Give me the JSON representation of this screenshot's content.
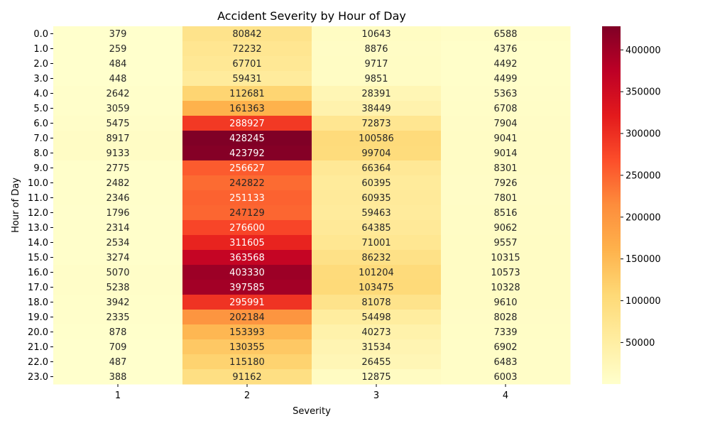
{
  "chart_data": {
    "type": "heatmap",
    "title": "Accident Severity by Hour of Day",
    "xlabel": "Severity",
    "ylabel": "Hour of Day",
    "x_categories": [
      "1",
      "2",
      "3",
      "4"
    ],
    "y_categories": [
      "0.0",
      "1.0",
      "2.0",
      "3.0",
      "4.0",
      "5.0",
      "6.0",
      "7.0",
      "8.0",
      "9.0",
      "10.0",
      "11.0",
      "12.0",
      "13.0",
      "14.0",
      "15.0",
      "16.0",
      "17.0",
      "18.0",
      "19.0",
      "20.0",
      "21.0",
      "22.0",
      "23.0"
    ],
    "values": [
      [
        379,
        80842,
        10643,
        6588
      ],
      [
        259,
        72232,
        8876,
        4376
      ],
      [
        484,
        67701,
        9717,
        4492
      ],
      [
        448,
        59431,
        9851,
        4499
      ],
      [
        2642,
        112681,
        28391,
        5363
      ],
      [
        3059,
        161363,
        38449,
        6708
      ],
      [
        5475,
        288927,
        72873,
        7904
      ],
      [
        8917,
        428245,
        100586,
        9041
      ],
      [
        9133,
        423792,
        99704,
        9014
      ],
      [
        2775,
        256627,
        66364,
        8301
      ],
      [
        2482,
        242822,
        60395,
        7926
      ],
      [
        2346,
        251133,
        60935,
        7801
      ],
      [
        1796,
        247129,
        59463,
        8516
      ],
      [
        2314,
        276600,
        64385,
        9062
      ],
      [
        2534,
        311605,
        71001,
        9557
      ],
      [
        3274,
        363568,
        86232,
        10315
      ],
      [
        5070,
        403330,
        101204,
        10573
      ],
      [
        5238,
        397585,
        103475,
        10328
      ],
      [
        3942,
        295991,
        81078,
        9610
      ],
      [
        2335,
        202184,
        54498,
        8028
      ],
      [
        878,
        153393,
        40273,
        7339
      ],
      [
        709,
        130355,
        31534,
        6902
      ],
      [
        487,
        115180,
        26455,
        6483
      ],
      [
        388,
        91162,
        12875,
        6003
      ]
    ],
    "colorbar": {
      "colormap": "YlOrRd",
      "min": 259,
      "max": 428245,
      "ticks": [
        50000,
        100000,
        150000,
        200000,
        250000,
        300000,
        350000,
        400000
      ]
    }
  }
}
